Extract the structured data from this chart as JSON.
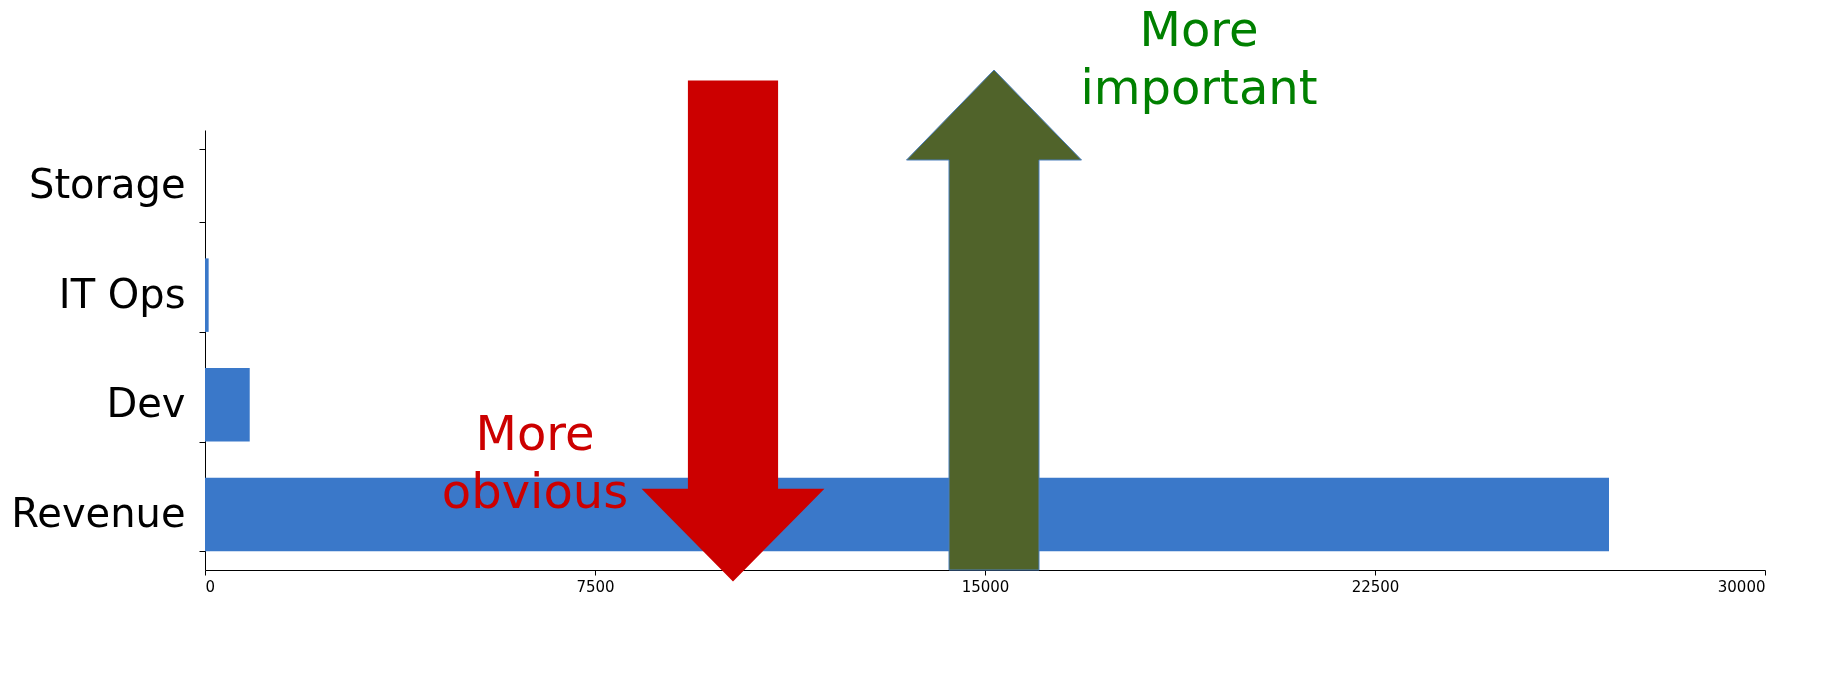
{
  "chart_data": {
    "type": "bar",
    "orientation": "horizontal",
    "categories": [
      "Storage",
      "IT Ops",
      "Dev",
      "Revenue"
    ],
    "values": [
      0,
      70,
      860,
      27000
    ],
    "color": "#3a78c9",
    "xlim": [
      0,
      30000
    ],
    "xticks": [
      0,
      7500,
      15000,
      22500,
      30000
    ],
    "grid": false,
    "annotations": [
      "More obvious",
      "More important"
    ]
  }
}
